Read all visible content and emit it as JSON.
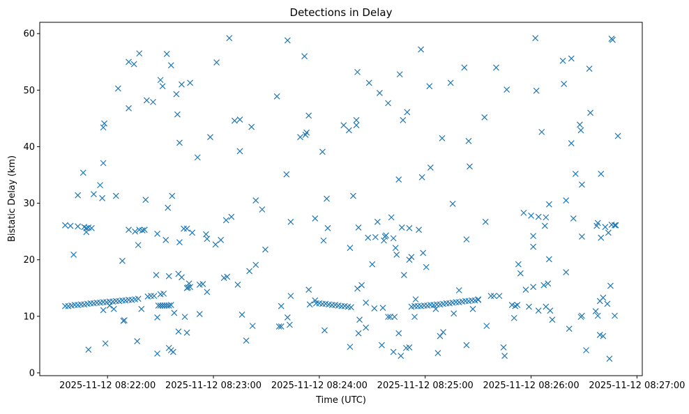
{
  "chart_data": {
    "type": "scatter",
    "title": "Detections in Delay",
    "xlabel": "Time (UTC)",
    "ylabel": "Bistatic Delay (km)",
    "marker": "x",
    "color": "#1f77b4",
    "x_units": "minutes after 2025-11-12 08:21:00",
    "xlim": [
      0.36,
      6.05
    ],
    "ylim": [
      -0.5,
      62
    ],
    "x_ticks": [
      {
        "value": 1,
        "label": "2025-11-12 08:22:00"
      },
      {
        "value": 2,
        "label": "2025-11-12 08:23:00"
      },
      {
        "value": 3,
        "label": "2025-11-12 08:24:00"
      },
      {
        "value": 4,
        "label": "2025-11-12 08:25:00"
      },
      {
        "value": 5,
        "label": "2025-11-12 08:26:00"
      },
      {
        "value": 6,
        "label": "2025-11-12 08:27:00"
      }
    ],
    "y_ticks": [
      {
        "value": 0,
        "label": "0"
      },
      {
        "value": 10,
        "label": "10"
      },
      {
        "value": 20,
        "label": "20"
      },
      {
        "value": 30,
        "label": "30"
      },
      {
        "value": 40,
        "label": "40"
      },
      {
        "value": 50,
        "label": "50"
      },
      {
        "value": 60,
        "label": "60"
      }
    ],
    "points": [
      [
        0.6,
        11.8
      ],
      [
        0.63,
        11.8
      ],
      [
        0.66,
        11.9
      ],
      [
        0.69,
        12.0
      ],
      [
        0.72,
        12.0
      ],
      [
        0.75,
        12.1
      ],
      [
        0.78,
        12.1
      ],
      [
        0.81,
        12.2
      ],
      [
        0.84,
        12.3
      ],
      [
        0.87,
        12.3
      ],
      [
        0.9,
        12.4
      ],
      [
        0.93,
        12.4
      ],
      [
        0.96,
        12.5
      ],
      [
        0.99,
        12.5
      ],
      [
        1.02,
        12.6
      ],
      [
        1.05,
        12.6
      ],
      [
        1.08,
        12.7
      ],
      [
        1.11,
        12.7
      ],
      [
        1.14,
        12.8
      ],
      [
        1.17,
        12.8
      ],
      [
        1.2,
        12.9
      ],
      [
        1.23,
        12.9
      ],
      [
        1.26,
        13.0
      ],
      [
        1.29,
        13.1
      ],
      [
        1.38,
        13.5
      ],
      [
        1.41,
        13.6
      ],
      [
        1.44,
        13.6
      ],
      [
        1.5,
        13.9
      ],
      [
        1.53,
        14.0
      ],
      [
        1.48,
        11.9
      ],
      [
        1.5,
        11.9
      ],
      [
        1.52,
        11.9
      ],
      [
        1.54,
        11.9
      ],
      [
        1.56,
        11.9
      ],
      [
        1.58,
        11.9
      ],
      [
        1.6,
        12.0
      ],
      [
        2.97,
        12.3
      ],
      [
        3.0,
        12.3
      ],
      [
        3.03,
        12.2
      ],
      [
        3.06,
        12.2
      ],
      [
        3.09,
        12.1
      ],
      [
        3.12,
        12.0
      ],
      [
        3.15,
        12.0
      ],
      [
        3.18,
        11.9
      ],
      [
        3.21,
        11.8
      ],
      [
        3.24,
        11.8
      ],
      [
        3.27,
        11.7
      ],
      [
        3.3,
        11.6
      ],
      [
        3.87,
        11.7
      ],
      [
        3.9,
        11.8
      ],
      [
        3.93,
        11.8
      ],
      [
        3.96,
        11.8
      ],
      [
        3.99,
        11.9
      ],
      [
        4.02,
        11.9
      ],
      [
        4.05,
        12.0
      ],
      [
        4.08,
        12.0
      ],
      [
        4.11,
        12.1
      ],
      [
        4.14,
        12.1
      ],
      [
        4.17,
        12.2
      ],
      [
        4.2,
        12.3
      ],
      [
        4.23,
        12.3
      ],
      [
        4.26,
        12.4
      ],
      [
        4.29,
        12.5
      ],
      [
        4.32,
        12.5
      ],
      [
        4.35,
        12.6
      ],
      [
        4.38,
        12.7
      ],
      [
        4.41,
        12.7
      ],
      [
        4.44,
        12.8
      ],
      [
        4.47,
        12.8
      ],
      [
        4.5,
        12.9
      ],
      [
        0.6,
        26.1
      ],
      [
        0.65,
        26.0
      ],
      [
        0.72,
        25.9
      ],
      [
        0.78,
        25.8
      ],
      [
        0.8,
        25.6
      ],
      [
        0.82,
        25.7
      ],
      [
        0.85,
        25.6
      ],
      [
        1.2,
        25.3
      ],
      [
        1.26,
        25.0
      ],
      [
        1.3,
        25.3
      ],
      [
        1.33,
        25.2
      ],
      [
        1.35,
        25.3
      ],
      [
        1.75,
        25.5
      ],
      [
        0.68,
        20.9
      ],
      [
        0.72,
        31.4
      ],
      [
        0.77,
        35.4
      ],
      [
        0.8,
        24.9
      ],
      [
        0.87,
        31.6
      ],
      [
        0.93,
        33.2
      ],
      [
        0.95,
        30.9
      ],
      [
        0.96,
        37.1
      ],
      [
        0.96,
        43.4
      ],
      [
        0.97,
        44.1
      ],
      [
        0.82,
        4.1
      ],
      [
        0.98,
        5.2
      ],
      [
        1.02,
        11.9
      ],
      [
        0.96,
        11.1
      ],
      [
        1.06,
        11.3
      ],
      [
        1.08,
        31.3
      ],
      [
        1.1,
        50.3
      ],
      [
        1.14,
        19.8
      ],
      [
        1.15,
        9.2
      ],
      [
        1.16,
        9.3
      ],
      [
        1.2,
        46.8
      ],
      [
        1.2,
        55.0
      ],
      [
        1.25,
        54.6
      ],
      [
        1.29,
        22.6
      ],
      [
        1.28,
        5.6
      ],
      [
        1.32,
        11.3
      ],
      [
        1.3,
        56.5
      ],
      [
        1.36,
        30.6
      ],
      [
        1.37,
        48.2
      ],
      [
        1.43,
        47.9
      ],
      [
        1.46,
        17.3
      ],
      [
        1.47,
        24.6
      ],
      [
        1.47,
        3.4
      ],
      [
        1.47,
        9.8
      ],
      [
        1.5,
        51.8
      ],
      [
        1.52,
        50.7
      ],
      [
        1.55,
        23.5
      ],
      [
        1.56,
        56.4
      ],
      [
        1.57,
        29.2
      ],
      [
        1.58,
        17.1
      ],
      [
        1.6,
        54.4
      ],
      [
        1.58,
        4.4
      ],
      [
        1.6,
        4.0
      ],
      [
        1.61,
        31.3
      ],
      [
        1.62,
        3.7
      ],
      [
        1.63,
        10.6
      ],
      [
        1.65,
        49.3
      ],
      [
        1.66,
        45.7
      ],
      [
        1.67,
        17.5
      ],
      [
        1.68,
        40.7
      ],
      [
        1.67,
        7.3
      ],
      [
        1.68,
        23.1
      ],
      [
        1.7,
        51.0
      ],
      [
        1.7,
        16.9
      ],
      [
        1.72,
        25.5
      ],
      [
        1.73,
        9.9
      ],
      [
        1.75,
        15.0
      ],
      [
        1.75,
        7.1
      ],
      [
        1.76,
        15.1
      ],
      [
        1.77,
        15.8
      ],
      [
        1.78,
        15.2
      ],
      [
        1.78,
        51.3
      ],
      [
        1.8,
        24.8
      ],
      [
        1.85,
        38.1
      ],
      [
        1.87,
        15.6
      ],
      [
        1.87,
        10.4
      ],
      [
        1.9,
        15.7
      ],
      [
        1.93,
        24.5
      ],
      [
        1.94,
        23.7
      ],
      [
        1.94,
        14.3
      ],
      [
        1.97,
        41.7
      ],
      [
        2.02,
        22.7
      ],
      [
        2.03,
        54.9
      ],
      [
        2.07,
        23.5
      ],
      [
        2.1,
        16.8
      ],
      [
        2.12,
        27.0
      ],
      [
        2.13,
        17.0
      ],
      [
        2.15,
        59.2
      ],
      [
        2.17,
        27.6
      ],
      [
        2.2,
        44.6
      ],
      [
        2.23,
        15.6
      ],
      [
        2.25,
        44.8
      ],
      [
        2.25,
        39.2
      ],
      [
        2.27,
        10.3
      ],
      [
        2.31,
        5.7
      ],
      [
        2.34,
        18.0
      ],
      [
        2.36,
        43.5
      ],
      [
        2.37,
        8.3
      ],
      [
        2.4,
        19.1
      ],
      [
        2.4,
        30.5
      ],
      [
        2.46,
        28.9
      ],
      [
        2.49,
        21.8
      ],
      [
        2.6,
        48.9
      ],
      [
        2.62,
        8.2
      ],
      [
        2.64,
        11.8
      ],
      [
        2.64,
        8.2
      ],
      [
        2.69,
        35.1
      ],
      [
        2.7,
        58.8
      ],
      [
        2.7,
        9.8
      ],
      [
        2.72,
        8.5
      ],
      [
        2.73,
        26.7
      ],
      [
        2.73,
        13.6
      ],
      [
        2.82,
        41.7
      ],
      [
        2.86,
        56.0
      ],
      [
        2.87,
        42.1
      ],
      [
        2.88,
        42.5
      ],
      [
        2.9,
        45.5
      ],
      [
        2.9,
        14.7
      ],
      [
        2.91,
        12.1
      ],
      [
        2.96,
        12.8
      ],
      [
        2.96,
        27.3
      ],
      [
        3.03,
        39.1
      ],
      [
        3.04,
        23.4
      ],
      [
        3.05,
        7.5
      ],
      [
        3.07,
        30.8
      ],
      [
        3.08,
        25.6
      ],
      [
        3.23,
        43.8
      ],
      [
        3.28,
        42.9
      ],
      [
        3.29,
        22.1
      ],
      [
        3.29,
        4.6
      ],
      [
        3.32,
        31.3
      ],
      [
        3.35,
        44.7
      ],
      [
        3.35,
        43.8
      ],
      [
        3.36,
        53.2
      ],
      [
        3.36,
        14.9
      ],
      [
        3.37,
        7.0
      ],
      [
        3.37,
        25.7
      ],
      [
        3.38,
        9.4
      ],
      [
        3.4,
        15.5
      ],
      [
        3.44,
        12.4
      ],
      [
        3.44,
        8.0
      ],
      [
        3.46,
        23.9
      ],
      [
        3.47,
        51.3
      ],
      [
        3.5,
        19.2
      ],
      [
        3.53,
        24.0
      ],
      [
        3.52,
        11.4
      ],
      [
        3.55,
        26.7
      ],
      [
        3.57,
        49.5
      ],
      [
        3.59,
        4.9
      ],
      [
        3.6,
        11.5
      ],
      [
        3.61,
        23.4
      ],
      [
        3.62,
        24.1
      ],
      [
        3.63,
        24.3
      ],
      [
        3.65,
        47.7
      ],
      [
        3.65,
        9.9
      ],
      [
        3.67,
        9.9
      ],
      [
        3.68,
        27.5
      ],
      [
        3.7,
        3.7
      ],
      [
        3.7,
        23.8
      ],
      [
        3.71,
        9.9
      ],
      [
        3.72,
        22.1
      ],
      [
        3.73,
        20.9
      ],
      [
        3.75,
        34.2
      ],
      [
        3.75,
        7.0
      ],
      [
        3.76,
        52.8
      ],
      [
        3.77,
        3.0
      ],
      [
        3.78,
        25.7
      ],
      [
        3.79,
        44.7
      ],
      [
        3.8,
        17.3
      ],
      [
        3.82,
        4.4
      ],
      [
        3.83,
        46.1
      ],
      [
        3.85,
        4.5
      ],
      [
        3.85,
        25.6
      ],
      [
        3.85,
        20.0
      ],
      [
        3.87,
        20.5
      ],
      [
        3.9,
        9.9
      ],
      [
        3.91,
        13.0
      ],
      [
        3.94,
        25.3
      ],
      [
        3.96,
        57.2
      ],
      [
        3.97,
        34.6
      ],
      [
        3.98,
        21.2
      ],
      [
        4.01,
        18.7
      ],
      [
        4.04,
        50.7
      ],
      [
        4.05,
        36.3
      ],
      [
        4.1,
        11.3
      ],
      [
        4.12,
        3.5
      ],
      [
        4.14,
        6.5
      ],
      [
        4.16,
        41.5
      ],
      [
        4.17,
        7.2
      ],
      [
        4.24,
        51.3
      ],
      [
        4.26,
        29.9
      ],
      [
        4.27,
        10.5
      ],
      [
        4.32,
        14.6
      ],
      [
        4.37,
        54.0
      ],
      [
        4.39,
        23.6
      ],
      [
        4.39,
        4.9
      ],
      [
        4.41,
        41.0
      ],
      [
        4.42,
        36.5
      ],
      [
        4.45,
        11.3
      ],
      [
        4.5,
        13.0
      ],
      [
        4.56,
        45.2
      ],
      [
        4.57,
        26.7
      ],
      [
        4.58,
        8.3
      ],
      [
        4.62,
        13.6
      ],
      [
        4.65,
        13.6
      ],
      [
        4.67,
        54.0
      ],
      [
        4.7,
        13.6
      ],
      [
        4.74,
        4.5
      ],
      [
        4.75,
        3.0
      ],
      [
        4.77,
        50.1
      ],
      [
        4.82,
        12.0
      ],
      [
        4.84,
        9.7
      ],
      [
        4.85,
        11.8
      ],
      [
        4.87,
        12.0
      ],
      [
        4.88,
        19.2
      ],
      [
        4.9,
        17.6
      ],
      [
        4.93,
        28.3
      ],
      [
        4.95,
        14.7
      ],
      [
        4.98,
        11.7
      ],
      [
        5.0,
        27.8
      ],
      [
        5.02,
        22.3
      ],
      [
        5.02,
        24.2
      ],
      [
        5.02,
        15.2
      ],
      [
        5.04,
        59.2
      ],
      [
        5.05,
        49.9
      ],
      [
        5.07,
        27.6
      ],
      [
        5.07,
        11.0
      ],
      [
        5.1,
        42.6
      ],
      [
        5.12,
        15.5
      ],
      [
        5.13,
        26.0
      ],
      [
        5.14,
        27.5
      ],
      [
        5.14,
        11.7
      ],
      [
        5.16,
        15.8
      ],
      [
        5.17,
        29.8
      ],
      [
        5.17,
        20.1
      ],
      [
        5.18,
        11.0
      ],
      [
        5.2,
        9.4
      ],
      [
        5.3,
        55.2
      ],
      [
        5.31,
        51.1
      ],
      [
        5.33,
        30.5
      ],
      [
        5.33,
        17.8
      ],
      [
        5.36,
        7.8
      ],
      [
        5.38,
        55.6
      ],
      [
        5.38,
        40.6
      ],
      [
        5.4,
        27.3
      ],
      [
        5.42,
        35.2
      ],
      [
        5.46,
        43.9
      ],
      [
        5.47,
        42.9
      ],
      [
        5.48,
        33.3
      ],
      [
        5.48,
        24.1
      ],
      [
        5.47,
        9.9
      ],
      [
        5.48,
        10.1
      ],
      [
        5.52,
        4.0
      ],
      [
        5.55,
        53.8
      ],
      [
        5.56,
        46.0
      ],
      [
        5.61,
        10.9
      ],
      [
        5.63,
        10.1
      ],
      [
        5.62,
        26.0
      ],
      [
        5.63,
        26.5
      ],
      [
        5.65,
        12.7
      ],
      [
        5.65,
        6.7
      ],
      [
        5.66,
        35.2
      ],
      [
        5.66,
        23.9
      ],
      [
        5.68,
        6.5
      ],
      [
        5.68,
        13.3
      ],
      [
        5.7,
        25.8
      ],
      [
        5.72,
        12.2
      ],
      [
        5.73,
        24.8
      ],
      [
        5.74,
        2.5
      ],
      [
        5.75,
        15.4
      ],
      [
        5.76,
        26.2
      ],
      [
        5.76,
        59.1
      ],
      [
        5.77,
        58.9
      ],
      [
        5.79,
        26.1
      ],
      [
        5.8,
        26.1
      ],
      [
        5.82,
        41.9
      ],
      [
        5.79,
        10.1
      ]
    ]
  }
}
